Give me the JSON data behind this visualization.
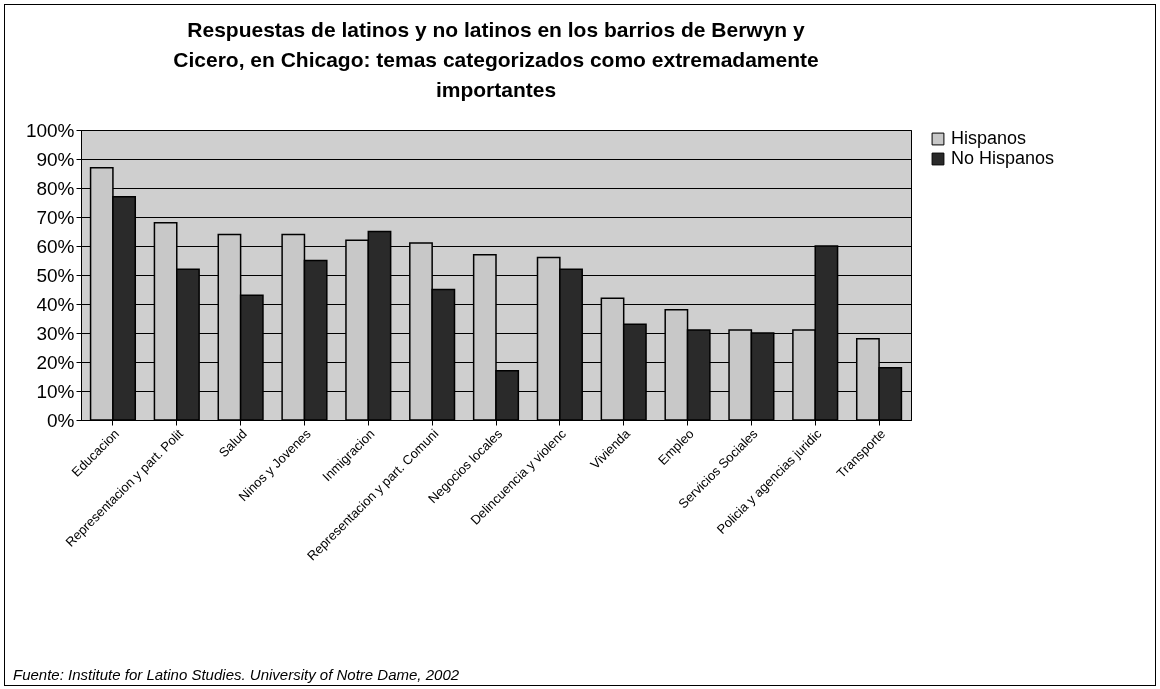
{
  "chart_data": {
    "type": "bar",
    "title": "Respuestas de latinos y no latinos en los barrios de Berwyn y Cicero, en Chicago: temas categorizados como extremadamente importantes",
    "categories": [
      "Educacion",
      "Representacion y part. Polit",
      "Salud",
      "Ninos y Jovenes",
      "Inmigracion",
      "Representacion y part. Comuni",
      "Negocios locales",
      "Delincuencia y violenc",
      "Vivienda",
      "Empleo",
      "Servicios Sociales",
      "Policia y agencias juridic",
      "Transporte"
    ],
    "series": [
      {
        "name": "Hispanos",
        "color": "#c8c8c8",
        "values": [
          87,
          68,
          64,
          64,
          62,
          61,
          57,
          56,
          42,
          38,
          31,
          31,
          28
        ]
      },
      {
        "name": "No Hispanos",
        "color": "#2a2a2a",
        "values": [
          77,
          52,
          43,
          55,
          65,
          45,
          17,
          52,
          33,
          31,
          30,
          60,
          18
        ]
      }
    ],
    "ylim": [
      0,
      100
    ],
    "yticks": [
      {
        "value": 0,
        "label": "0%"
      },
      {
        "value": 10,
        "label": "10%"
      },
      {
        "value": 20,
        "label": "20%"
      },
      {
        "value": 30,
        "label": "30%"
      },
      {
        "value": 40,
        "label": "40%"
      },
      {
        "value": 50,
        "label": "50%"
      },
      {
        "value": 60,
        "label": "60%"
      },
      {
        "value": 70,
        "label": "70%"
      },
      {
        "value": 80,
        "label": "80%"
      },
      {
        "value": 90,
        "label": "90%"
      },
      {
        "value": 100,
        "label": "100%"
      }
    ],
    "grid": "y",
    "legend": "right",
    "annotations": [
      "Fuente: Institute for Latino Studies. University of Notre Dame, 2002"
    ]
  }
}
